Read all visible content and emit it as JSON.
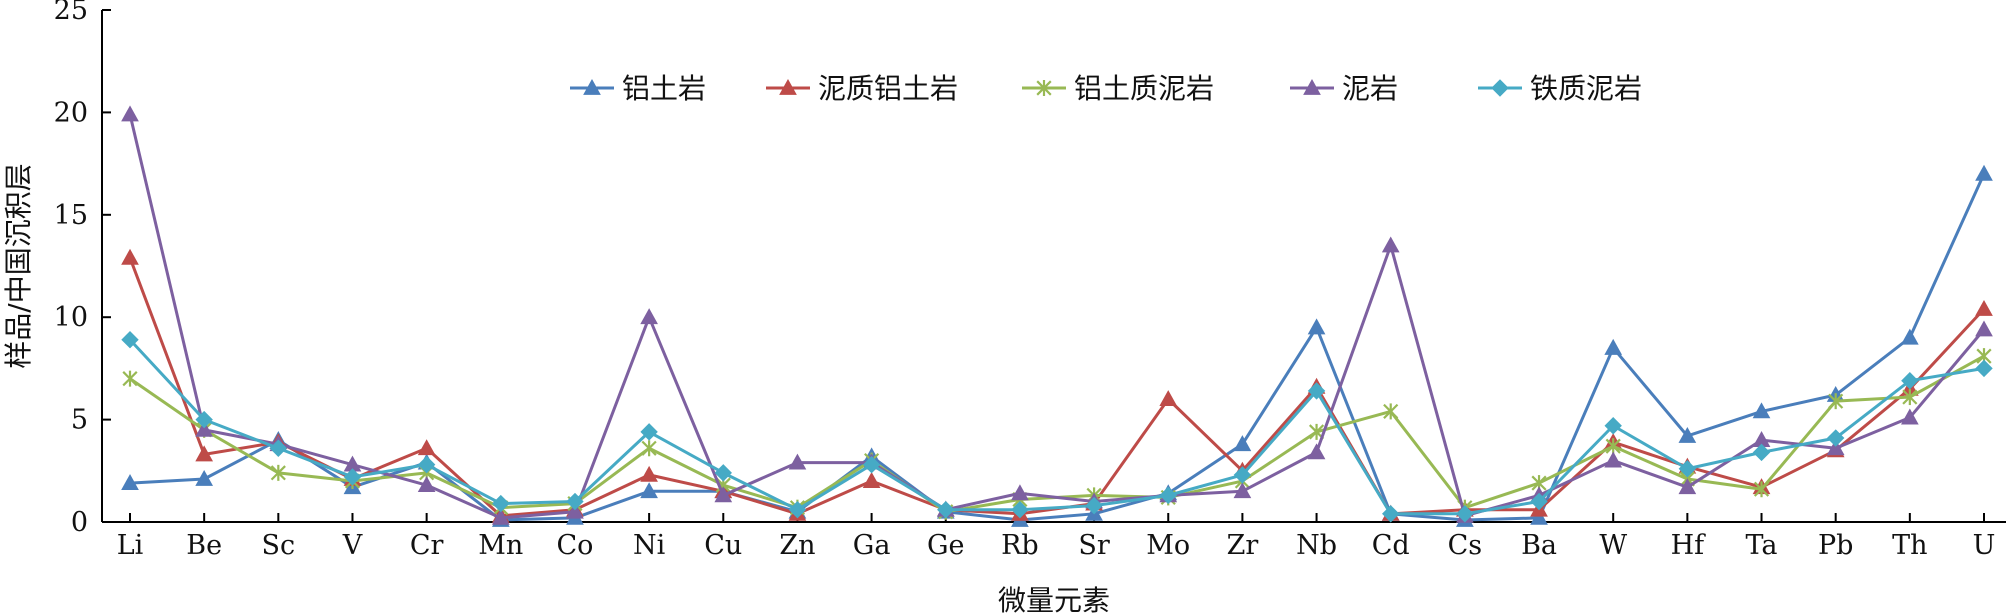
{
  "chart_data": {
    "type": "line",
    "xlabel": "微量元素",
    "ylabel": "样品/中国沉积层",
    "ylim": [
      0,
      25
    ],
    "yticks": [
      0,
      5,
      10,
      15,
      20,
      25
    ],
    "grid": false,
    "legend_position": "top-center",
    "categories": [
      "Li",
      "Be",
      "Sc",
      "V",
      "Cr",
      "Mn",
      "Co",
      "Ni",
      "Cu",
      "Zn",
      "Ga",
      "Ge",
      "Rb",
      "Sr",
      "Mo",
      "Zr",
      "Nb",
      "Cd",
      "Cs",
      "Ba",
      "W",
      "Hf",
      "Ta",
      "Pb",
      "Th",
      "U"
    ],
    "series": [
      {
        "name": "铝土岩",
        "color": "#4a7ebb",
        "marker": "triangle",
        "values": [
          1.9,
          2.1,
          4.0,
          1.7,
          2.9,
          0.1,
          0.2,
          1.5,
          1.5,
          0.5,
          3.2,
          0.5,
          0.1,
          0.4,
          1.4,
          3.8,
          9.5,
          0.4,
          0.1,
          0.2,
          8.5,
          4.2,
          5.4,
          6.2,
          9.0,
          17.0
        ]
      },
      {
        "name": "泥质铝土岩",
        "color": "#be4b48",
        "marker": "triangle",
        "values": [
          12.9,
          3.3,
          3.9,
          2.1,
          3.6,
          0.3,
          0.6,
          2.3,
          1.5,
          0.4,
          2.0,
          0.6,
          0.4,
          0.9,
          6.0,
          2.5,
          6.6,
          0.4,
          0.6,
          0.6,
          3.9,
          2.7,
          1.7,
          3.5,
          6.5,
          10.4
        ]
      },
      {
        "name": "铝土质泥岩",
        "color": "#98b954",
        "marker": "star",
        "values": [
          7.0,
          4.5,
          2.4,
          2.0,
          2.4,
          0.7,
          0.9,
          3.6,
          1.8,
          0.7,
          3.0,
          0.5,
          1.1,
          1.3,
          1.2,
          2.0,
          4.4,
          5.4,
          0.7,
          1.9,
          3.7,
          2.1,
          1.6,
          5.9,
          6.1,
          8.1
        ]
      },
      {
        "name": "泥岩",
        "color": "#7d60a0",
        "marker": "triangle",
        "values": [
          19.9,
          4.5,
          3.8,
          2.8,
          1.8,
          0.2,
          0.5,
          10.0,
          1.3,
          2.9,
          2.9,
          0.6,
          1.4,
          1.0,
          1.3,
          1.5,
          3.4,
          13.5,
          0.3,
          1.3,
          3.0,
          1.7,
          4.0,
          3.6,
          5.1,
          9.4
        ]
      },
      {
        "name": "铁质泥岩",
        "color": "#46aac5",
        "marker": "diamond",
        "values": [
          8.9,
          5.0,
          3.6,
          2.2,
          2.8,
          0.9,
          1.0,
          4.4,
          2.4,
          0.6,
          2.8,
          0.6,
          0.6,
          0.8,
          1.3,
          2.3,
          6.4,
          0.4,
          0.4,
          1.0,
          4.7,
          2.6,
          3.4,
          4.1,
          6.9,
          7.5
        ]
      }
    ]
  }
}
